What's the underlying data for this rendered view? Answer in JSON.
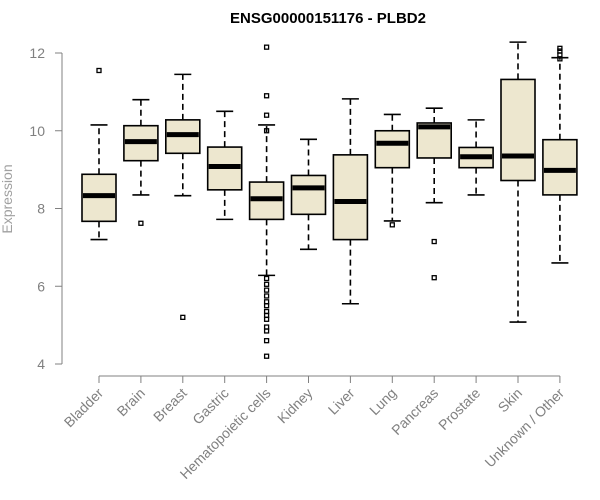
{
  "chart_data": {
    "type": "boxplot",
    "title": "ENSG00000151176 - PLBD2",
    "xlabel": "",
    "ylabel": "Expression",
    "ylim": [
      4,
      12.3
    ],
    "yticks": [
      4,
      6,
      8,
      10,
      12
    ],
    "categories": [
      "Bladder",
      "Brain",
      "Breast",
      "Gastric",
      "Hematopoietic cells",
      "Kidney",
      "Liver",
      "Lung",
      "Pancreas",
      "Prostate",
      "Skin",
      "Unknown / Other"
    ],
    "boxes": [
      {
        "name": "Bladder",
        "min": 7.2,
        "q1": 7.67,
        "median": 8.33,
        "q3": 8.88,
        "max": 10.15,
        "outliers": [
          11.55
        ]
      },
      {
        "name": "Brain",
        "min": 8.35,
        "q1": 9.23,
        "median": 9.72,
        "q3": 10.13,
        "max": 10.8,
        "outliers": [
          7.62
        ]
      },
      {
        "name": "Breast",
        "min": 8.33,
        "q1": 9.42,
        "median": 9.9,
        "q3": 10.28,
        "max": 11.45,
        "outliers": [
          5.2
        ]
      },
      {
        "name": "Gastric",
        "min": 7.72,
        "q1": 8.48,
        "median": 9.08,
        "q3": 9.58,
        "max": 10.5,
        "outliers": []
      },
      {
        "name": "Hematopoietic cells",
        "min": 6.28,
        "q1": 7.72,
        "median": 8.25,
        "q3": 8.68,
        "max": 10.15,
        "outliers": [
          12.15,
          10.9,
          10.4,
          10.0,
          6.2,
          6.05,
          5.9,
          5.75,
          5.6,
          5.5,
          5.35,
          5.25,
          5.15,
          4.95,
          4.85,
          4.6,
          4.2
        ]
      },
      {
        "name": "Kidney",
        "min": 6.95,
        "q1": 7.85,
        "median": 8.53,
        "q3": 8.85,
        "max": 9.78,
        "outliers": []
      },
      {
        "name": "Liver",
        "min": 5.55,
        "q1": 7.2,
        "median": 8.18,
        "q3": 9.38,
        "max": 10.82,
        "outliers": []
      },
      {
        "name": "Lung",
        "min": 7.68,
        "q1": 9.05,
        "median": 9.68,
        "q3": 10.0,
        "max": 10.42,
        "outliers": [
          7.58
        ]
      },
      {
        "name": "Pancreas",
        "min": 8.15,
        "q1": 9.3,
        "median": 10.1,
        "q3": 10.2,
        "max": 10.58,
        "outliers": [
          7.15,
          6.22
        ]
      },
      {
        "name": "Prostate",
        "min": 8.35,
        "q1": 9.05,
        "median": 9.33,
        "q3": 9.57,
        "max": 10.28,
        "outliers": []
      },
      {
        "name": "Skin",
        "min": 5.08,
        "q1": 8.72,
        "median": 9.35,
        "q3": 11.32,
        "max": 12.28,
        "outliers": []
      },
      {
        "name": "Unknown / Other",
        "min": 6.6,
        "q1": 8.35,
        "median": 8.98,
        "q3": 9.77,
        "max": 11.88,
        "outliers": [
          12.12,
          12.05,
          11.95,
          11.85
        ]
      }
    ]
  }
}
